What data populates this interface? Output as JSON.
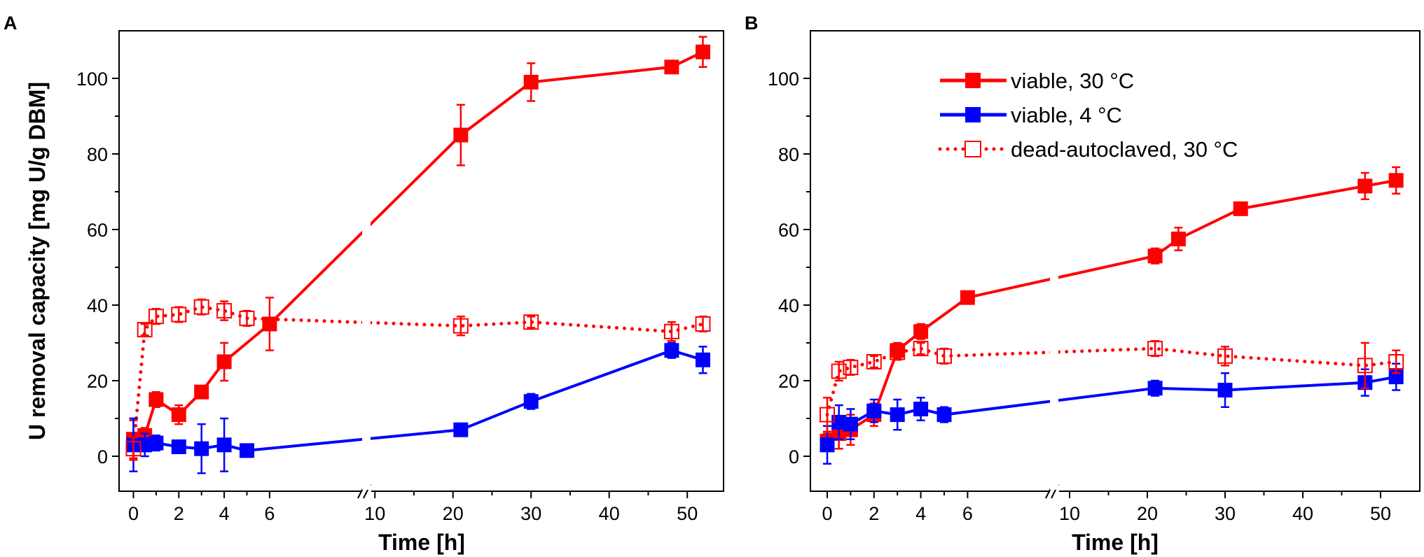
{
  "colors": {
    "red": "#ff0000",
    "blue": "#0000ff",
    "axis": "#000000"
  },
  "chart_data": [
    {
      "panel_label": "A",
      "type": "line",
      "xlabel": "Time [h]",
      "ylabel": "U removal capacity [mg U/g DBM]",
      "xticks_left": [
        0,
        2,
        4,
        6
      ],
      "xticks_right": [
        10,
        20,
        30,
        40,
        50
      ],
      "x_break": [
        7,
        7.5
      ],
      "yticks": [
        0,
        20,
        40,
        60,
        80,
        100
      ],
      "ylim": [
        -6,
        113
      ],
      "series": [
        {
          "name": "viable, 30 °C",
          "color": "#ff0000",
          "style": "solid",
          "marker": "filled-square",
          "x": [
            0,
            0.5,
            1,
            2,
            3,
            4,
            6,
            21,
            30,
            48,
            52
          ],
          "y": [
            4.5,
            5.5,
            15,
            11,
            17,
            25,
            35,
            85,
            99,
            103,
            107
          ],
          "err": [
            5,
            2,
            2,
            2.5,
            1.5,
            5,
            7,
            8,
            5,
            1,
            4
          ]
        },
        {
          "name": "viable, 4 °C",
          "color": "#0000ff",
          "style": "solid",
          "marker": "filled-square",
          "x": [
            0,
            0.5,
            1,
            2,
            3,
            4,
            5,
            21,
            30,
            48,
            52
          ],
          "y": [
            3,
            3,
            3.5,
            2.5,
            2,
            3,
            1.5,
            7,
            14.5,
            28,
            25.5
          ],
          "err": [
            7,
            3,
            2,
            1.5,
            6.5,
            7,
            1.5,
            1.5,
            2,
            2,
            3.5
          ]
        },
        {
          "name": "dead-autoclaved, 30 °C",
          "color": "#ff0000",
          "style": "dotted",
          "marker": "open-square",
          "x": [
            0,
            0.5,
            1,
            2,
            3,
            4,
            5,
            21,
            30,
            48,
            52
          ],
          "y": [
            2,
            33.5,
            37,
            37.5,
            39.5,
            38.5,
            36.5,
            34.5,
            35.5,
            33,
            35
          ],
          "err": [
            3,
            1.5,
            2,
            2,
            2,
            2.5,
            2,
            2.5,
            1.5,
            2.5,
            2
          ]
        }
      ]
    },
    {
      "panel_label": "B",
      "type": "line",
      "xlabel": "Time [h]",
      "ylabel": "",
      "xticks_left": [
        0,
        2,
        4,
        6
      ],
      "xticks_right": [
        10,
        20,
        30,
        40,
        50
      ],
      "x_break": [
        7,
        7.5
      ],
      "yticks": [
        0,
        20,
        40,
        60,
        80,
        100
      ],
      "ylim": [
        -6,
        113
      ],
      "legend": {
        "position": "top-center",
        "entries": [
          "viable, 30 °C",
          "viable, 4 °C",
          "dead-autoclaved, 30 °C"
        ]
      },
      "series": [
        {
          "name": "viable, 30 °C",
          "color": "#ff0000",
          "style": "solid",
          "marker": "filled-square",
          "x": [
            0,
            0.5,
            1,
            2,
            3,
            4,
            6,
            21,
            24,
            32,
            48,
            52
          ],
          "y": [
            4,
            6,
            7,
            11,
            28,
            33,
            42,
            53,
            57.5,
            65.5,
            71.5,
            73
          ],
          "err": [
            2,
            4,
            4,
            3,
            2,
            2,
            1.5,
            2,
            3,
            1,
            3.5,
            3.5
          ]
        },
        {
          "name": "viable, 4 °C",
          "color": "#0000ff",
          "style": "solid",
          "marker": "filled-square",
          "x": [
            0,
            0.5,
            1,
            2,
            3,
            4,
            5,
            21,
            30,
            48,
            52
          ],
          "y": [
            3,
            9,
            8.5,
            12,
            11,
            12.5,
            11,
            18,
            17.5,
            19.5,
            21
          ],
          "err": [
            5,
            4.5,
            4,
            3,
            4,
            3,
            2,
            2,
            4.5,
            3.5,
            3.5
          ]
        },
        {
          "name": "dead-autoclaved, 30 °C",
          "color": "#ff0000",
          "style": "dotted",
          "marker": "open-square",
          "x": [
            0,
            0.5,
            1,
            2,
            3,
            4,
            5,
            21,
            30,
            48,
            52
          ],
          "y": [
            11,
            22.5,
            23.5,
            25,
            27.5,
            28.5,
            26.5,
            28.5,
            26.5,
            24,
            25
          ],
          "err": [
            4.5,
            2.5,
            2,
            1.5,
            2,
            1.5,
            2,
            2,
            2.5,
            6,
            3
          ]
        }
      ]
    }
  ]
}
